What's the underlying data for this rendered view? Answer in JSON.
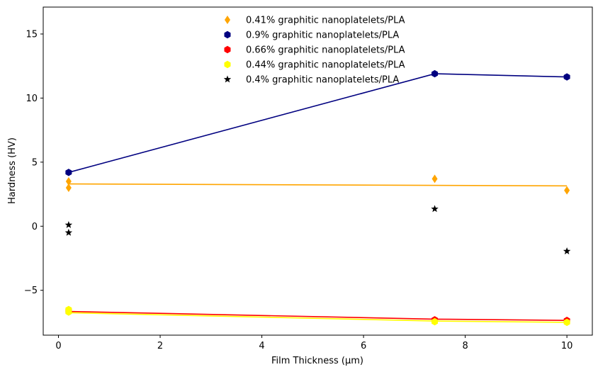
{
  "chart_data": {
    "type": "scatter",
    "xlabel": "Film Thickness (µm)",
    "ylabel": "Hardness (HV)",
    "xlim": [
      -0.3,
      10.5
    ],
    "ylim": [
      -8.5,
      17.1
    ],
    "xticks": [
      0,
      2,
      4,
      6,
      8,
      10
    ],
    "yticks": [
      -5,
      0,
      5,
      10,
      15
    ],
    "ytick_labels": [
      "−5",
      "0",
      "5",
      "10",
      "15"
    ],
    "grid": false,
    "legend_position": "top-center",
    "series": [
      {
        "name": "0.41% graphitic nanoplatelets/PLA",
        "color": "#FFA500",
        "marker": "diamond",
        "points": [
          [
            0.2,
            3.5
          ],
          [
            0.2,
            3.0
          ],
          [
            7.4,
            3.7
          ],
          [
            10.0,
            2.8
          ]
        ],
        "fit_line": [
          [
            0.2,
            3.3
          ],
          [
            10.0,
            3.15
          ]
        ]
      },
      {
        "name": "0.9% graphitic nanoplatelets/PLA",
        "color": "#000080",
        "marker": "hexagon",
        "points": [
          [
            0.2,
            4.2
          ],
          [
            7.4,
            11.9
          ],
          [
            10.0,
            11.65
          ]
        ],
        "fit_line": [
          [
            0.2,
            4.2
          ],
          [
            7.4,
            11.9
          ],
          [
            10.0,
            11.65
          ]
        ]
      },
      {
        "name": "0.66% graphitic nanoplatelets/PLA",
        "color": "#FF0000",
        "marker": "hexagon",
        "points": [
          [
            0.2,
            -6.6
          ],
          [
            7.4,
            -7.3
          ],
          [
            10.0,
            -7.35
          ]
        ],
        "fit_line": [
          [
            0.2,
            -6.65
          ],
          [
            7.4,
            -7.25
          ],
          [
            10.0,
            -7.35
          ]
        ]
      },
      {
        "name": "0.44% graphitic nanoplatelets/PLA",
        "color": "#FFFF00",
        "marker": "hexagon",
        "points": [
          [
            0.2,
            -6.5
          ],
          [
            0.2,
            -6.7
          ],
          [
            7.4,
            -7.45
          ],
          [
            10.0,
            -7.5
          ]
        ],
        "fit_line": [
          [
            0.2,
            -6.75
          ],
          [
            7.4,
            -7.4
          ],
          [
            10.0,
            -7.5
          ]
        ]
      },
      {
        "name": "0.4% graphitic nanoplatelets/PLA",
        "color": "#000000",
        "marker": "star",
        "points": [
          [
            0.2,
            0.1
          ],
          [
            0.2,
            -0.5
          ],
          [
            7.4,
            1.35
          ],
          [
            10.0,
            -1.95
          ]
        ],
        "fit_line": null
      }
    ]
  }
}
